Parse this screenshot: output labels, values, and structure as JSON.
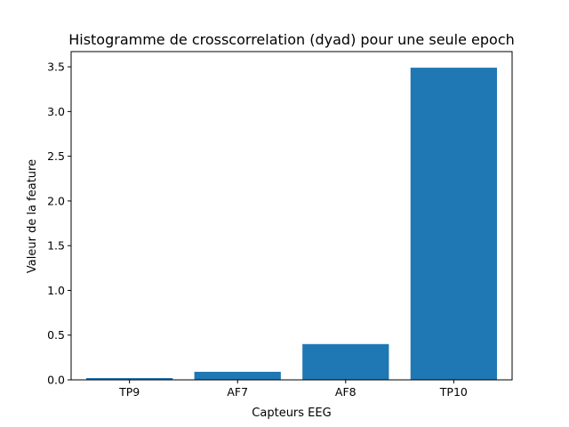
{
  "chart_data": {
    "type": "bar",
    "title": "Histogramme de crosscorrelation (dyad) pour une seule epoch",
    "xlabel": "Capteurs EEG",
    "ylabel": "Valeur de la feature",
    "categories": [
      "TP9",
      "AF7",
      "AF8",
      "TP10"
    ],
    "values": [
      0.02,
      0.09,
      0.4,
      3.49
    ],
    "ylim": [
      0,
      3.67
    ],
    "yticks": [
      0.0,
      0.5,
      1.0,
      1.5,
      2.0,
      2.5,
      3.0,
      3.5
    ],
    "ytick_labels": [
      "0.0",
      "0.5",
      "1.0",
      "1.5",
      "2.0",
      "2.5",
      "3.0",
      "3.5"
    ],
    "bar_color": "#1f77b4",
    "grid": false,
    "legend": false
  }
}
